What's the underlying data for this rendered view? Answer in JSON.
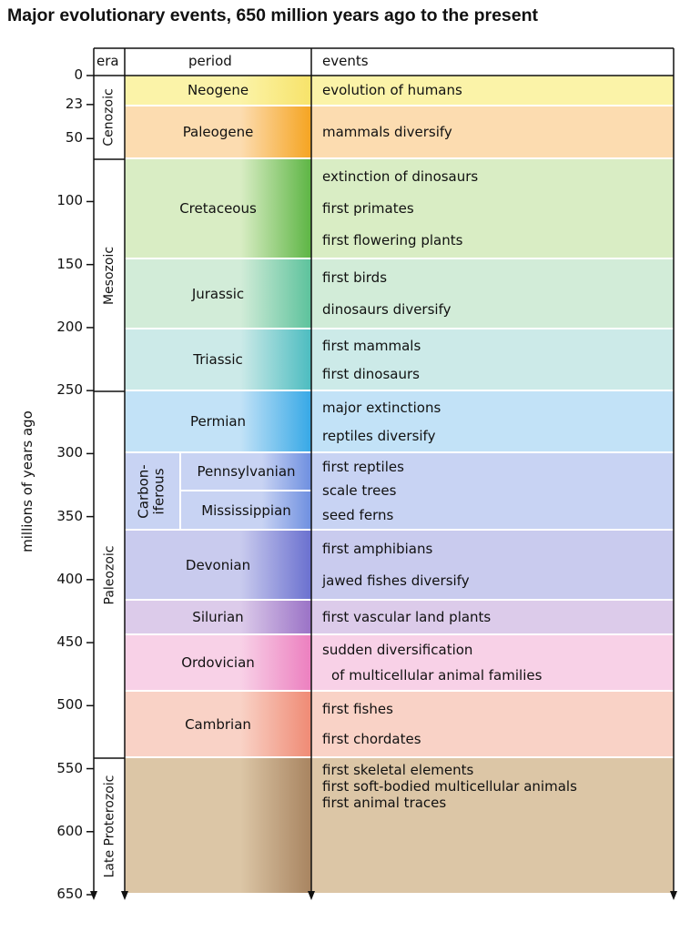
{
  "title": "Major evolutionary events, 650 million years ago to the present",
  "axis": {
    "label": "millions of years ago",
    "ticks": [
      0,
      23,
      50,
      100,
      150,
      200,
      250,
      300,
      350,
      400,
      450,
      500,
      550,
      600,
      650
    ]
  },
  "headers": {
    "era": "era",
    "period": "period",
    "events": "events"
  },
  "eras": [
    "Cenozoic",
    "Mesozoic",
    "Paleozoic",
    "Late Proterozoic"
  ],
  "subgroup": [
    "Carbon-",
    "iferous"
  ],
  "periods": [
    {
      "name": "Neogene",
      "events": [
        "evolution of humans"
      ]
    },
    {
      "name": "Paleogene",
      "events": [
        "mammals diversify"
      ]
    },
    {
      "name": "Cretaceous",
      "events": [
        "extinction of dinosaurs",
        "first primates",
        "first flowering plants"
      ]
    },
    {
      "name": "Jurassic",
      "events": [
        "first birds",
        "dinosaurs diversify"
      ]
    },
    {
      "name": "Triassic",
      "events": [
        "first mammals",
        "first dinosaurs"
      ]
    },
    {
      "name": "Permian",
      "events": [
        "major extinctions",
        "reptiles diversify"
      ]
    },
    {
      "name": "Pennsylvanian",
      "events": [
        "first reptiles",
        "scale trees",
        "seed ferns"
      ]
    },
    {
      "name": "Mississippian"
    },
    {
      "name": "Devonian",
      "events": [
        "first amphibians",
        "jawed fishes diversify"
      ]
    },
    {
      "name": "Silurian",
      "events": [
        "first vascular land plants"
      ]
    },
    {
      "name": "Ordovician",
      "events": [
        "sudden diversification",
        "of multicellular animal families"
      ]
    },
    {
      "name": "Cambrian",
      "events": [
        "first fishes",
        "first chordates"
      ]
    },
    {
      "events": [
        "first skeletal elements",
        "first soft-bodied multicellular animals",
        "first animal traces"
      ]
    }
  ]
}
